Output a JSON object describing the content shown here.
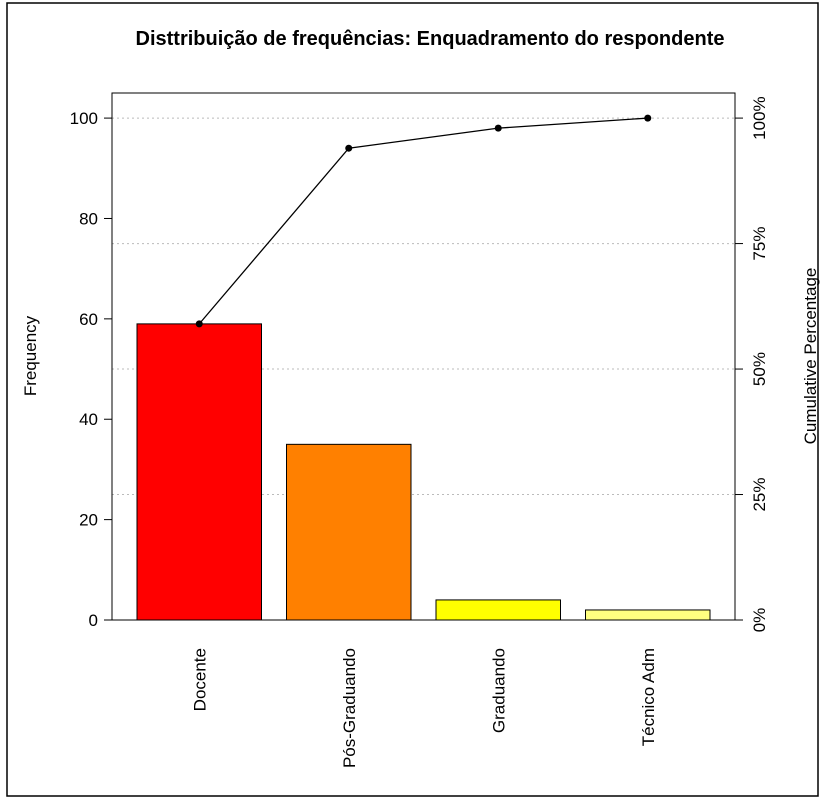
{
  "chart_data": {
    "type": "bar",
    "title": "Disttribuição de frequências:  Enquadramento do respondente",
    "ylabel": "Frequency",
    "y2label": "Cumulative Percentage",
    "categories": [
      "Docente",
      "Pós-Graduando",
      "Graduando",
      "Técnico Adm"
    ],
    "series": [
      {
        "name": "Frequency",
        "type": "bar",
        "colors": [
          "#ff0000",
          "#ff8000",
          "#ffff00",
          "#ffff80"
        ],
        "values": [
          59,
          35,
          4,
          2
        ]
      },
      {
        "name": "Cumulative Percentage",
        "type": "line",
        "axis": "y2",
        "color": "#000000",
        "values": [
          59,
          94,
          98,
          100
        ]
      }
    ],
    "ylim": [
      0,
      105
    ],
    "yticks": [
      0,
      20,
      40,
      60,
      80,
      100
    ],
    "y2lim": [
      0,
      105
    ],
    "y2ticks": [
      {
        "value": 0,
        "label": "0%"
      },
      {
        "value": 25,
        "label": "25%"
      },
      {
        "value": 50,
        "label": "50%"
      },
      {
        "value": 75,
        "label": "75%"
      },
      {
        "value": 100,
        "label": "100%"
      }
    ],
    "grid": true
  }
}
